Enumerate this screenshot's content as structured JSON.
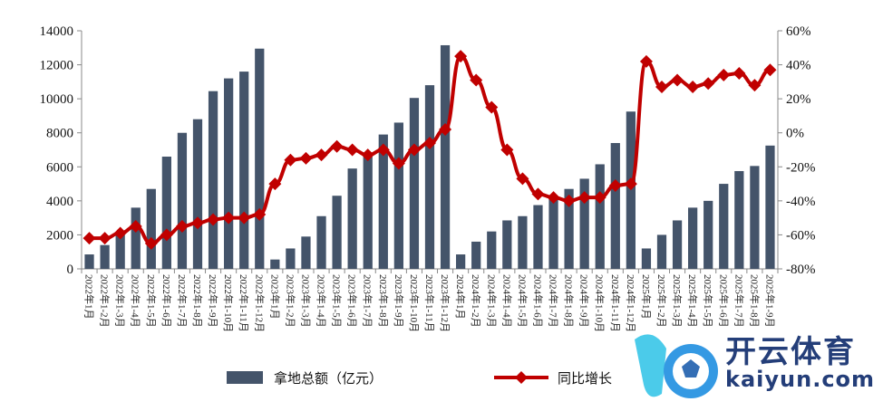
{
  "chart_data": {
    "type": "bar+line",
    "categories": [
      "2022年1月",
      "2022年1-2月",
      "2022年1-3月",
      "2022年1-4月",
      "2022年1-5月",
      "2022年1-6月",
      "2022年1-7月",
      "2022年1-8月",
      "2022年1-9月",
      "2022年1-10月",
      "2022年1-11月",
      "2022年1-12月",
      "2023年1月",
      "2023年1-2月",
      "2023年1-3月",
      "2023年1-4月",
      "2023年1-5月",
      "2023年1-6月",
      "2023年1-7月",
      "2023年1-8月",
      "2023年1-9月",
      "2023年1-10月",
      "2023年1-11月",
      "2023年1-12月",
      "2024年1月",
      "2024年1-2月",
      "2024年1-3月",
      "2024年1-4月",
      "2024年1-5月",
      "2024年1-6月",
      "2024年1-7月",
      "2024年1-8月",
      "2024年1-9月",
      "2024年1-10月",
      "2024年1-11月",
      "2024年1-12月",
      "2025年1月",
      "2025年1-2月",
      "2025年1-3月",
      "2025年1-4月",
      "2025年1-5月",
      "2025年1-6月",
      "2025年1-7月",
      "2025年1-8月",
      "2025年1-9月"
    ],
    "series": [
      {
        "name": "拿地总额（亿元）",
        "type": "bar",
        "axis": "left",
        "color": "#44546a",
        "values": [
          850,
          1400,
          2000,
          3600,
          4700,
          6600,
          8000,
          8800,
          10450,
          11200,
          11600,
          12950,
          550,
          1200,
          1900,
          3100,
          4300,
          5900,
          6600,
          7900,
          8600,
          10050,
          10800,
          13150,
          850,
          1600,
          2200,
          2850,
          3100,
          3750,
          4200,
          4700,
          5300,
          6150,
          7400,
          9250,
          1200,
          2000,
          2850,
          3600,
          4000,
          5000,
          5750,
          6050,
          7250
        ]
      },
      {
        "name": "同比增长",
        "type": "line",
        "axis": "right",
        "color": "#c00000",
        "marker": "diamond",
        "values": [
          -62,
          -62,
          -59,
          -55,
          -65,
          -60,
          -55,
          -53,
          -51,
          -50,
          -50,
          -48,
          -30,
          -16,
          -15,
          -13,
          -8,
          -10,
          -13,
          -10,
          -18,
          -10,
          -6,
          2,
          45,
          31,
          15,
          -10,
          -27,
          -36,
          -38,
          -40,
          -38,
          -38,
          -31,
          -30,
          42,
          27,
          31,
          27,
          29,
          34,
          35,
          28,
          37
        ]
      }
    ],
    "left_axis": {
      "ylim": [
        0,
        14000
      ],
      "ticks": [
        "0",
        "2000",
        "4000",
        "6000",
        "8000",
        "10000",
        "12000",
        "14000"
      ]
    },
    "right_axis": {
      "ylim": [
        -80,
        60
      ],
      "ticks": [
        "-80%",
        "-60%",
        "-40%",
        "-20%",
        "0%",
        "20%",
        "40%",
        "60%"
      ]
    },
    "grid": false,
    "legend_placement": "bottom"
  },
  "watermark": {
    "name": "开云体育",
    "url_text": "kaiyun.com"
  }
}
